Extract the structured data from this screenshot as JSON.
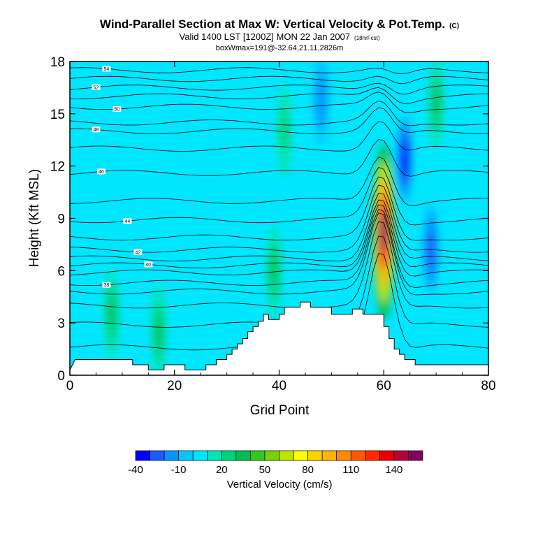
{
  "chart_data": {
    "type": "heatmap",
    "title": "Wind-Parallel Section at Max W: Vertical Velocity & Pot.Temp.",
    "title_mark": "(C)",
    "subtitle": "Valid 1400 LST [1200Z] MON 22 Jan 2007",
    "subtitle_note": "(18hrFcst)",
    "subtitle2": "boxWmax=191@-32.64,21.11,2826m",
    "xlabel": "Grid Point",
    "ylabel": "Height (Kft MSL)",
    "xlim": [
      0,
      80
    ],
    "ylim": [
      0,
      18
    ],
    "xticks": [
      "0",
      "20",
      "40",
      "60",
      "80"
    ],
    "xtick_values": [
      0,
      20,
      40,
      60,
      80
    ],
    "yticks": [
      "0",
      "3",
      "6",
      "9",
      "12",
      "15",
      "18"
    ],
    "ytick_values": [
      0,
      3,
      6,
      9,
      12,
      15,
      18
    ],
    "colorbar": {
      "label": "Vertical Velocity (cm/s)",
      "tick_labels": [
        "-40",
        "-10",
        "20",
        "50",
        "80",
        "110",
        "140"
      ],
      "tick_values": [
        -40,
        -10,
        20,
        50,
        80,
        110,
        140
      ],
      "bin_edges": [
        -40,
        -30,
        -20,
        -10,
        0,
        10,
        20,
        30,
        40,
        50,
        60,
        70,
        80,
        90,
        100,
        110,
        120,
        130,
        140,
        150,
        160
      ],
      "colors": [
        "#0000ff",
        "#1a5aff",
        "#0096ff",
        "#00c8ff",
        "#00e6ff",
        "#00e6b4",
        "#00d278",
        "#00be50",
        "#32c81e",
        "#78d200",
        "#bee600",
        "#ffff00",
        "#ffd200",
        "#ffb400",
        "#ff8c00",
        "#ff5a00",
        "#ff2800",
        "#e60000",
        "#b4003c",
        "#820064"
      ]
    },
    "terrain": [
      [
        0,
        0.3
      ],
      [
        1,
        0.9
      ],
      [
        12,
        0.9
      ],
      [
        12,
        0.6
      ],
      [
        15,
        0.6
      ],
      [
        15,
        0.3
      ],
      [
        18,
        0.3
      ],
      [
        18,
        0.6
      ],
      [
        22,
        0.6
      ],
      [
        22,
        0.3
      ],
      [
        26,
        0.3
      ],
      [
        26,
        0.6
      ],
      [
        28,
        0.6
      ],
      [
        28,
        0.9
      ],
      [
        30,
        0.9
      ],
      [
        30,
        1.2
      ],
      [
        31,
        1.2
      ],
      [
        31,
        1.5
      ],
      [
        32,
        1.5
      ],
      [
        32,
        1.8
      ],
      [
        33,
        1.8
      ],
      [
        33,
        2.1
      ],
      [
        34,
        2.1
      ],
      [
        34,
        2.5
      ],
      [
        35,
        2.5
      ],
      [
        35,
        2.8
      ],
      [
        36,
        2.8
      ],
      [
        36,
        3.1
      ],
      [
        37,
        3.1
      ],
      [
        37,
        3.5
      ],
      [
        38,
        3.5
      ],
      [
        38,
        3.2
      ],
      [
        40,
        3.2
      ],
      [
        40,
        3.5
      ],
      [
        41,
        3.5
      ],
      [
        41,
        3.9
      ],
      [
        44,
        3.9
      ],
      [
        44,
        4.2
      ],
      [
        46,
        4.2
      ],
      [
        46,
        3.9
      ],
      [
        50,
        3.9
      ],
      [
        50,
        3.5
      ],
      [
        54,
        3.5
      ],
      [
        54,
        3.8
      ],
      [
        56,
        3.8
      ],
      [
        56,
        3.5
      ],
      [
        60,
        3.5
      ],
      [
        60,
        2.8
      ],
      [
        61,
        2.8
      ],
      [
        61,
        2.1
      ],
      [
        62,
        2.1
      ],
      [
        62,
        1.5
      ],
      [
        63,
        1.5
      ],
      [
        63,
        1.2
      ],
      [
        64,
        1.2
      ],
      [
        64,
        0.9
      ],
      [
        66,
        0.9
      ],
      [
        66,
        0.6
      ],
      [
        80,
        0.6
      ]
    ],
    "vertical_velocity_features": [
      {
        "x": 60,
        "y": 8.2,
        "peak": 150
      },
      {
        "x": 64,
        "y": 12.4,
        "peak": -40
      },
      {
        "x": 69,
        "y": 7.2,
        "peak": -30
      },
      {
        "x": 70,
        "y": 15.6,
        "peak": 30
      },
      {
        "x": 39,
        "y": 6.0,
        "peak": 30
      },
      {
        "x": 8,
        "y": 3.5,
        "peak": 30
      },
      {
        "x": 17,
        "y": 2.5,
        "peak": 30
      },
      {
        "x": 48,
        "y": 15.8,
        "peak": -20
      },
      {
        "x": 41,
        "y": 14.0,
        "peak": 25
      }
    ],
    "theta_contours": [
      {
        "value": 34,
        "base_y": 1.6,
        "label": "",
        "label_x": 0
      },
      {
        "value": 35,
        "base_y": 2.9,
        "label": "",
        "label_x": 0
      },
      {
        "value": 36,
        "base_y": 4.0,
        "label": "",
        "label_x": 0
      },
      {
        "value": 37,
        "base_y": 4.8,
        "label": "",
        "label_x": 0
      },
      {
        "value": 38,
        "base_y": 5.3,
        "label": "38",
        "label_x": 7
      },
      {
        "value": 39,
        "base_y": 5.9,
        "label": "",
        "label_x": 0
      },
      {
        "value": 40,
        "base_y": 6.3,
        "label": "40",
        "label_x": 15
      },
      {
        "value": 41,
        "base_y": 6.7,
        "label": "",
        "label_x": 0
      },
      {
        "value": 42,
        "base_y": 7.2,
        "label": "42",
        "label_x": 13
      },
      {
        "value": 43,
        "base_y": 7.9,
        "label": "",
        "label_x": 0
      },
      {
        "value": 44,
        "base_y": 8.9,
        "label": "44",
        "label_x": 11
      },
      {
        "value": 45,
        "base_y": 10.0,
        "label": "",
        "label_x": 0
      },
      {
        "value": 46,
        "base_y": 11.6,
        "label": "46",
        "label_x": 6
      },
      {
        "value": 47,
        "base_y": 13.0,
        "label": "",
        "label_x": 0
      },
      {
        "value": 48,
        "base_y": 14.0,
        "label": "48",
        "label_x": 5
      },
      {
        "value": 49,
        "base_y": 14.5,
        "label": "",
        "label_x": 0
      },
      {
        "value": 50,
        "base_y": 15.4,
        "label": "50",
        "label_x": 9
      },
      {
        "value": 51,
        "base_y": 16.0,
        "label": "",
        "label_x": 0
      },
      {
        "value": 52,
        "base_y": 16.5,
        "label": "52",
        "label_x": 5
      },
      {
        "value": 53,
        "base_y": 17.0,
        "label": "",
        "label_x": 0
      },
      {
        "value": 54,
        "base_y": 17.5,
        "label": "54",
        "label_x": 7
      }
    ]
  }
}
